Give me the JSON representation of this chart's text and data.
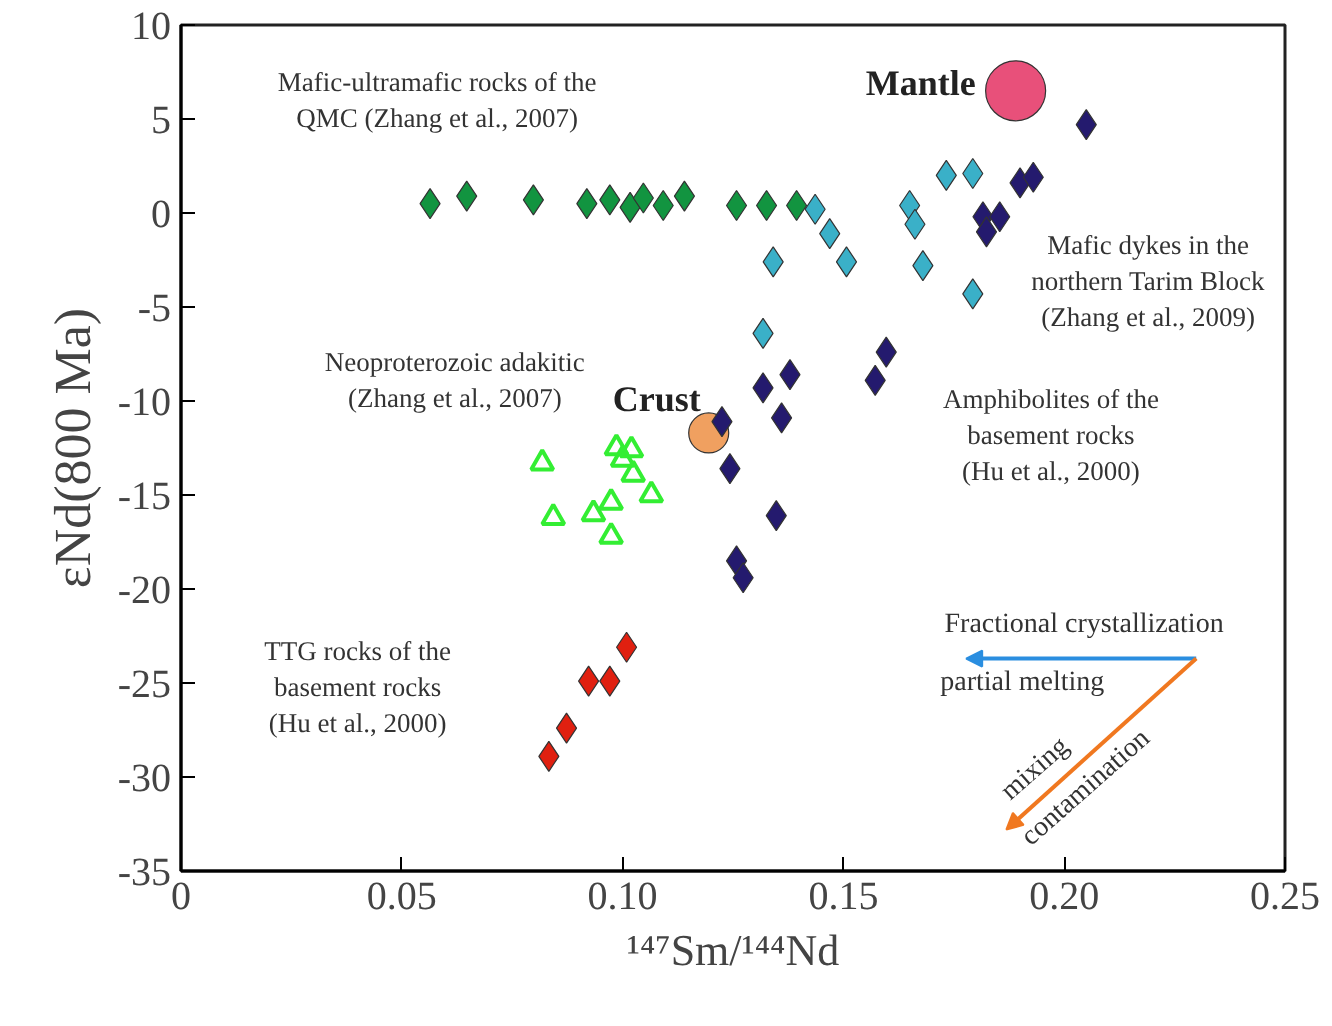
{
  "chart_data": {
    "type": "scatter",
    "xlabel": "¹⁴⁷Sm/¹⁴⁴Nd",
    "ylabel": "εNd(800 Ma)",
    "xlim": [
      0,
      0.25
    ],
    "ylim": [
      -35,
      10
    ],
    "xticks": [
      0,
      0.05,
      {
        "value": 0.1,
        "label": "0.10"
      },
      0.15,
      {
        "value": 0.2,
        "label": "0.20"
      },
      0.25
    ],
    "yticks": [
      10,
      5,
      0,
      -5,
      -10,
      -15,
      -20,
      -25,
      -30,
      -35
    ],
    "grid": false,
    "legend": false,
    "series": [
      {
        "color": "#129440",
        "marker": "diamond",
        "x": [
          0.0564,
          0.0647,
          0.0798,
          0.0919,
          0.0971,
          0.1017,
          0.1047,
          0.1092,
          0.114,
          0.1258,
          0.1326,
          0.1394
        ],
        "values": [
          0.5,
          0.9,
          0.7,
          0.5,
          0.7,
          0.3,
          0.8,
          0.4,
          0.9,
          0.4,
          0.4,
          0.4
        ]
      },
      {
        "color": "#3ab0c8",
        "marker": "diamond",
        "x": [
          0.1341,
          0.1318,
          0.1436,
          0.1469,
          0.1507,
          0.165,
          0.1662,
          0.168,
          0.1733,
          0.1793,
          0.1793
        ],
        "values": [
          -2.6,
          -6.4,
          0.2,
          -1.1,
          -2.6,
          0.4,
          -0.6,
          -2.8,
          2.0,
          2.1,
          -4.3
        ]
      },
      {
        "color": "#241a6e",
        "marker": "diamond",
        "x": [
          0.205,
          0.19,
          0.193,
          0.1816,
          0.1854,
          0.1824,
          0.1597,
          0.1572,
          0.1318,
          0.1379,
          0.136,
          0.1225,
          0.1243,
          0.1348,
          0.1258,
          0.1273
        ],
        "values": [
          4.7,
          1.6,
          1.9,
          -0.2,
          -0.2,
          -1.0,
          -7.4,
          -8.9,
          -9.3,
          -8.6,
          -10.9,
          -11.1,
          -13.6,
          -16.1,
          -18.5,
          -19.4
        ]
      },
      {
        "color": "#33ee33",
        "marker": "triangle",
        "x": [
          0.0818,
          0.0843,
          0.0934,
          0.0974,
          0.0974,
          0.0986,
          0.102,
          0.1,
          0.1024,
          0.1065
        ],
        "values": [
          -13.3,
          -16.2,
          -16.0,
          -15.4,
          -17.2,
          -12.5,
          -12.6,
          -13.1,
          -13.9,
          -15.0
        ]
      },
      {
        "color": "#e02010",
        "marker": "diamond",
        "x": [
          0.0833,
          0.0873,
          0.0923,
          0.0971,
          0.1009
        ],
        "values": [
          -28.9,
          -27.4,
          -24.9,
          -24.9,
          -23.1
        ]
      },
      {
        "name": "Mantle",
        "color": "#e8507a",
        "marker": "circle",
        "x": [
          0.189
        ],
        "values": [
          6.5
        ]
      },
      {
        "name": "Crust",
        "color": "#f0a060",
        "marker": "circle",
        "x": [
          0.1195
        ],
        "values": [
          -11.7
        ]
      }
    ],
    "annotations": [
      "Mafic-ultramafic rocks of the\nQMC (Zhang et al., 2007)",
      "Mafic dykes in the\nnorthern Tarim Block\n(Zhang et al., 2009)",
      "Neoproterozoic adakitic\n(Zhang et al., 2007)",
      "Amphibolites of the\nbasement rocks\n(Hu et al., 2000)",
      "TTG rocks of the\nbasement rocks\n(Hu et al., 2000)",
      "Fractional crystallization",
      "partial melting",
      "mixing",
      "contamination"
    ]
  }
}
